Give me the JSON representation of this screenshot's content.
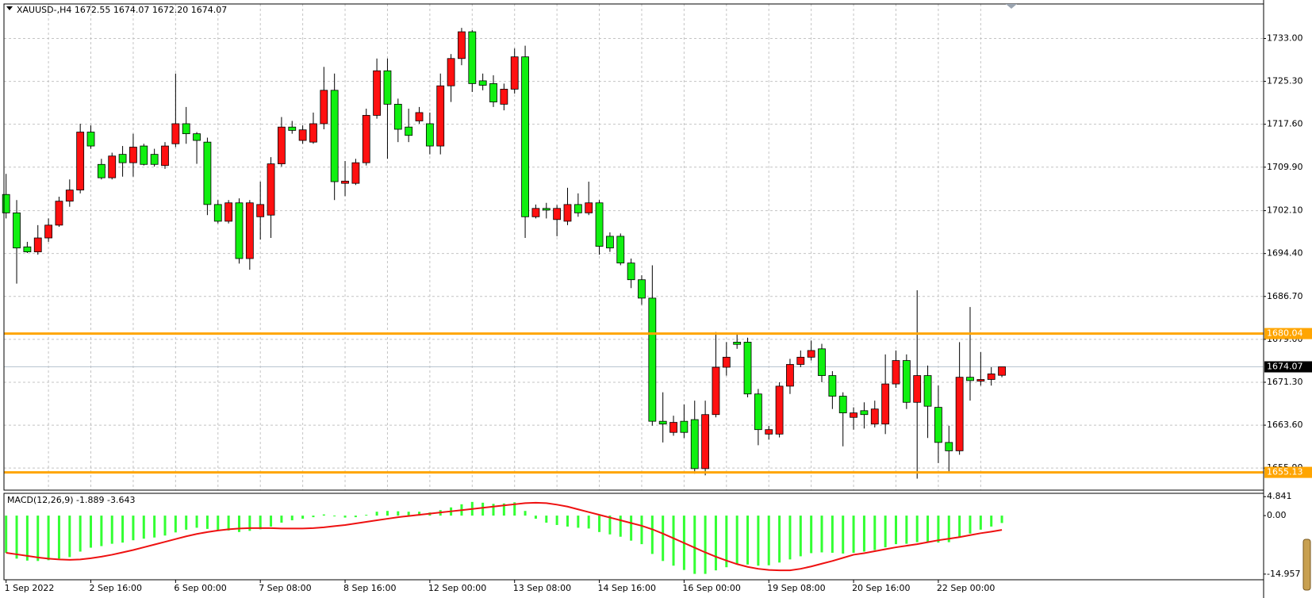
{
  "chart_data": [
    {
      "type": "candlestick",
      "title": "XAUUSD-,H4 1672.55 1674.07 1672.20 1674.07",
      "categories": [
        "1 Sep 2022",
        null,
        null,
        null,
        null,
        null,
        null,
        null,
        "2 Sep 16:00",
        null,
        null,
        null,
        null,
        null,
        null,
        null,
        "6 Sep 00:00",
        null,
        null,
        null,
        null,
        null,
        null,
        null,
        "7 Sep 08:00",
        null,
        null,
        null,
        null,
        null,
        null,
        null,
        "8 Sep 16:00",
        null,
        null,
        null,
        null,
        null,
        null,
        null,
        "12 Sep 00:00",
        null,
        null,
        null,
        null,
        null,
        null,
        null,
        "13 Sep 08:00",
        null,
        null,
        null,
        null,
        null,
        null,
        null,
        "14 Sep 16:00",
        null,
        null,
        null,
        null,
        null,
        null,
        null,
        "16 Sep 00:00",
        null,
        null,
        null,
        null,
        null,
        null,
        null,
        "19 Sep 08:00",
        null,
        null,
        null,
        null,
        null,
        null,
        null,
        "20 Sep 16:00",
        null,
        null,
        null,
        null,
        null,
        null,
        null,
        "22 Sep 00:00",
        null,
        null,
        null,
        null,
        null,
        null
      ],
      "open": [
        1705.0,
        1701.7,
        1695.6,
        1694.7,
        1697.2,
        1699.5,
        1703.8,
        1705.8,
        1716.2,
        1710.4,
        1708.0,
        1712.2,
        1710.7,
        1713.7,
        1712.2,
        1710.2,
        1714.1,
        1717.7,
        1715.9,
        1714.4,
        1703.2,
        1700.2,
        1703.5,
        1693.5,
        1701.0,
        1701.3,
        1710.5,
        1717.1,
        1714.7,
        1714.4,
        1717.7,
        1723.7,
        1707.0,
        1707.0,
        1710.7,
        1719.2,
        1727.2,
        1721.2,
        1717.1,
        1718.2,
        1717.7,
        1713.7,
        1724.5,
        1729.4,
        1734.2,
        1725.4,
        1724.9,
        1721.2,
        1723.9,
        1729.7,
        1701.0,
        1702.5,
        1700.5,
        1700.2,
        1703.2,
        1701.7,
        1703.5,
        1697.5,
        1697.5,
        1692.7,
        1689.7,
        1686.4,
        1664.3,
        1662.3,
        1664.3,
        1664.6,
        1655.8,
        1665.5,
        1674.0,
        1678.5,
        1678.5,
        1669.2,
        1662.0,
        1662.0,
        1670.6,
        1674.5,
        1675.8,
        1677.3,
        1672.5,
        1668.8,
        1665.0,
        1666.2,
        1663.8,
        1663.8,
        1671.0,
        1675.2,
        1667.7,
        1672.5,
        1666.8,
        1660.5,
        1659.0,
        1672.2,
        1671.5,
        1671.8,
        1672.55
      ],
      "high": [
        1708.7,
        1704.0,
        1696.5,
        1699.5,
        1700.7,
        1704.6,
        1707.7,
        1717.7,
        1717.4,
        1711.4,
        1712.5,
        1713.7,
        1715.9,
        1714.1,
        1713.2,
        1714.4,
        1726.7,
        1720.7,
        1716.2,
        1715.2,
        1704.0,
        1704.0,
        1704.3,
        1704.0,
        1707.3,
        1711.7,
        1718.9,
        1718.2,
        1717.4,
        1719.7,
        1727.9,
        1726.7,
        1711.0,
        1711.4,
        1720.4,
        1729.4,
        1729.4,
        1722.2,
        1720.4,
        1720.7,
        1719.7,
        1726.7,
        1730.2,
        1734.9,
        1734.5,
        1726.7,
        1726.4,
        1724.9,
        1731.2,
        1731.7,
        1703.2,
        1703.5,
        1703.1,
        1706.2,
        1705.2,
        1707.3,
        1704.0,
        1698.2,
        1698.0,
        1693.5,
        1690.5,
        1692.3,
        1669.5,
        1665.3,
        1667.3,
        1668.0,
        1668.0,
        1680.3,
        1678.5,
        1680.0,
        1679.3,
        1670.1,
        1663.5,
        1671.3,
        1675.5,
        1677.0,
        1678.8,
        1678.2,
        1673.3,
        1669.5,
        1666.8,
        1667.7,
        1668.0,
        1676.3,
        1677.0,
        1676.3,
        1687.8,
        1674.3,
        1670.7,
        1663.5,
        1678.5,
        1684.8,
        1676.7,
        1674.0,
        1674.07
      ],
      "low": [
        1700.7,
        1689.0,
        1694.5,
        1694.2,
        1696.5,
        1699.2,
        1702.8,
        1705.2,
        1713.2,
        1707.7,
        1707.7,
        1708.2,
        1708.2,
        1710.2,
        1710.0,
        1709.6,
        1713.5,
        1714.1,
        1710.5,
        1701.3,
        1699.8,
        1699.8,
        1692.6,
        1691.5,
        1696.9,
        1697.2,
        1710.0,
        1715.9,
        1714.1,
        1714.1,
        1716.7,
        1704.0,
        1704.7,
        1706.7,
        1710.2,
        1718.6,
        1711.4,
        1714.4,
        1714.4,
        1717.7,
        1712.2,
        1712.2,
        1721.6,
        1728.2,
        1723.4,
        1723.7,
        1720.7,
        1720.1,
        1723.1,
        1697.2,
        1700.7,
        1700.7,
        1697.5,
        1699.5,
        1701.0,
        1701.3,
        1694.2,
        1694.7,
        1692.3,
        1688.2,
        1685.2,
        1663.5,
        1660.5,
        1661.7,
        1661.3,
        1654.9,
        1654.6,
        1665.0,
        1672.5,
        1677.3,
        1668.6,
        1660.0,
        1661.0,
        1661.4,
        1669.2,
        1674.0,
        1675.2,
        1671.3,
        1666.5,
        1659.8,
        1662.8,
        1663.0,
        1663.2,
        1662.0,
        1670.3,
        1666.5,
        1654.0,
        1661.3,
        1656.8,
        1655.3,
        1658.3,
        1668.0,
        1670.7,
        1670.7,
        1672.2
      ],
      "close": [
        1701.7,
        1695.4,
        1694.7,
        1697.2,
        1699.5,
        1703.8,
        1705.8,
        1716.2,
        1713.7,
        1708.0,
        1711.9,
        1710.7,
        1713.5,
        1710.4,
        1710.4,
        1713.7,
        1717.7,
        1715.9,
        1714.7,
        1703.2,
        1700.2,
        1703.5,
        1693.5,
        1703.5,
        1703.2,
        1710.5,
        1717.1,
        1716.5,
        1716.6,
        1717.7,
        1723.7,
        1707.3,
        1707.4,
        1710.7,
        1719.2,
        1727.2,
        1721.2,
        1716.7,
        1715.6,
        1719.7,
        1713.7,
        1724.5,
        1729.4,
        1734.2,
        1724.9,
        1724.6,
        1721.6,
        1723.9,
        1729.7,
        1701.0,
        1702.5,
        1702.2,
        1702.5,
        1703.2,
        1701.7,
        1703.5,
        1695.7,
        1695.4,
        1692.7,
        1689.7,
        1686.4,
        1664.3,
        1663.8,
        1664.1,
        1662.3,
        1655.8,
        1665.5,
        1674.0,
        1675.8,
        1678.1,
        1669.2,
        1662.8,
        1662.8,
        1670.6,
        1674.5,
        1675.8,
        1677.0,
        1672.5,
        1668.8,
        1665.8,
        1665.8,
        1665.5,
        1666.5,
        1671.0,
        1675.2,
        1667.7,
        1672.5,
        1667.0,
        1660.5,
        1659.0,
        1672.2,
        1671.6,
        1671.8,
        1672.8,
        1674.07
      ],
      "up_color": "#ff1010",
      "down_color": "#10f010",
      "ylim": [
        1651.94,
        1739.19
      ],
      "yticks": [
        {
          "value": 1733.0,
          "label": "1733.00"
        },
        {
          "value": 1725.3,
          "label": "1725.30"
        },
        {
          "value": 1717.6,
          "label": "1717.60"
        },
        {
          "value": 1709.9,
          "label": "1709.90"
        },
        {
          "value": 1702.1,
          "label": "1702.10"
        },
        {
          "value": 1694.4,
          "label": "1694.40"
        },
        {
          "value": 1686.7,
          "label": "1686.70"
        },
        {
          "value": 1679.0,
          "label": "1679.00"
        },
        {
          "value": 1671.3,
          "label": "1671.30"
        },
        {
          "value": 1663.6,
          "label": "1663.60"
        },
        {
          "value": 1655.9,
          "label": "1655.90"
        }
      ],
      "grid": true,
      "levels": [
        {
          "value": 1680.04,
          "color": "#ffa500"
        },
        {
          "value": 1655.13,
          "color": "#ffa500"
        }
      ],
      "current_price": {
        "value": 1674.07,
        "color": "#b8c4d0"
      }
    },
    {
      "type": "macd",
      "title": "MACD(12,26,9) -1.889 -3.643",
      "histogram": {
        "color": "#33ff33",
        "values": [
          -9.5,
          -11,
          -11.5,
          -11.6,
          -11.4,
          -11,
          -10.6,
          -9.2,
          -8.2,
          -7.8,
          -7.2,
          -6.9,
          -6.3,
          -5.9,
          -5.6,
          -5.1,
          -4.3,
          -3.6,
          -3.1,
          -3.4,
          -3.8,
          -3.8,
          -4.2,
          -3.9,
          -3.5,
          -2.8,
          -1.8,
          -1.2,
          -0.8,
          -0.4,
          0.3,
          -0.2,
          -0.5,
          -0.4,
          0.2,
          1.0,
          1.2,
          1.1,
          1.0,
          1.0,
          0.8,
          1.4,
          2.1,
          2.9,
          3.5,
          3.3,
          3.0,
          3.1,
          3.4,
          1.2,
          -0.8,
          -1.8,
          -2.4,
          -2.8,
          -3.1,
          -3.3,
          -4.2,
          -4.8,
          -5.4,
          -6.4,
          -7.3,
          -9.8,
          -11.6,
          -12.8,
          -13.9,
          -14.9,
          -14.9,
          -14.0,
          -13.2,
          -12.4,
          -12.5,
          -12.8,
          -12.7,
          -12.0,
          -11.2,
          -10.4,
          -9.6,
          -9.4,
          -9.5,
          -9.7,
          -9.5,
          -9.2,
          -8.8,
          -8.1,
          -7.3,
          -7.2,
          -6.8,
          -6.7,
          -6.9,
          -6.8,
          -5.6,
          -4.6,
          -3.6,
          -2.8,
          -1.889
        ]
      },
      "signal": {
        "color": "#ee1111",
        "values": [
          -9.5,
          -9.9,
          -10.3,
          -10.7,
          -11.0,
          -11.2,
          -11.3,
          -11.2,
          -10.9,
          -10.5,
          -10.0,
          -9.4,
          -8.8,
          -8.1,
          -7.4,
          -6.7,
          -6.0,
          -5.3,
          -4.7,
          -4.2,
          -3.8,
          -3.5,
          -3.3,
          -3.2,
          -3.2,
          -3.2,
          -3.3,
          -3.3,
          -3.3,
          -3.2,
          -3.0,
          -2.7,
          -2.4,
          -2.0,
          -1.6,
          -1.2,
          -0.8,
          -0.4,
          -0.1,
          0.2,
          0.5,
          0.8,
          1.1,
          1.4,
          1.7,
          2.0,
          2.3,
          2.6,
          2.9,
          3.2,
          3.3,
          3.2,
          2.8,
          2.3,
          1.6,
          0.9,
          0.2,
          -0.5,
          -1.2,
          -1.9,
          -2.6,
          -3.5,
          -4.6,
          -5.8,
          -7.0,
          -8.2,
          -9.4,
          -10.5,
          -11.5,
          -12.4,
          -13.1,
          -13.6,
          -13.9,
          -14.0,
          -14.0,
          -13.6,
          -13.0,
          -12.3,
          -11.6,
          -10.8,
          -10.0,
          -9.6,
          -9.1,
          -8.6,
          -8.1,
          -7.7,
          -7.3,
          -6.8,
          -6.3,
          -5.9,
          -5.5,
          -5.0,
          -4.5,
          -4.1,
          -3.643
        ]
      },
      "ylim": [
        -16.4,
        5.7
      ],
      "yticks": [
        4.841,
        {
          "value": 0,
          "label": "0.00"
        },
        -14.957
      ]
    }
  ]
}
